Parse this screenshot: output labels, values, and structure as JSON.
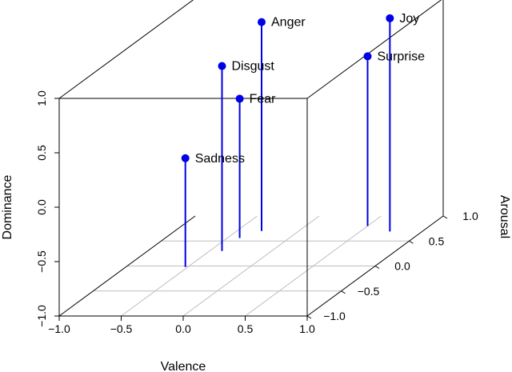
{
  "chart_data": {
    "type": "scatter",
    "subtype": "3d-scatter-with-drop-lines",
    "title": "",
    "xlabel": "Valence",
    "ylabel": "Arousal",
    "zlabel": "Dominance",
    "xlim": [
      -1.0,
      1.0
    ],
    "ylim": [
      -1.0,
      1.0
    ],
    "zlim": [
      -1.0,
      1.0
    ],
    "x_ticks": [
      "−1.0",
      "−0.5",
      "0.0",
      "0.5",
      "1.0"
    ],
    "y_ticks": [
      "−1.0",
      "−0.5",
      "0.0",
      "0.5",
      "1.0"
    ],
    "z_ticks": [
      "−1.0",
      "−0.5",
      "0.0",
      "0.5",
      "1.0"
    ],
    "grid": true,
    "legend": false,
    "colors": {
      "points": "#0000e6",
      "box": "#000000",
      "grid": "#bebebe"
    },
    "points": [
      {
        "label": "Sadness",
        "x": -0.52,
        "y": -0.02,
        "z": 0.0
      },
      {
        "label": "Disgust",
        "x": -0.4,
        "y": 0.3,
        "z": 0.7
      },
      {
        "label": "Fear",
        "x": -0.4,
        "y": 0.56,
        "z": 0.28
      },
      {
        "label": "Anger",
        "x": -0.3,
        "y": 0.7,
        "z": 0.92
      },
      {
        "label": "Surprise",
        "x": 0.5,
        "y": 0.8,
        "z": 0.56
      },
      {
        "label": "Joy",
        "x": 0.74,
        "y": 0.69,
        "z": 0.96
      }
    ]
  }
}
